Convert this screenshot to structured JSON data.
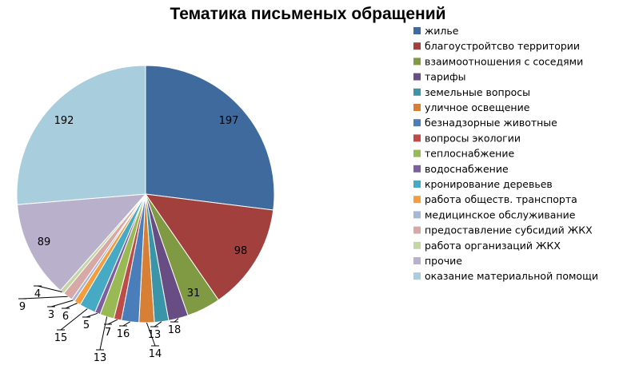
{
  "chart_data": {
    "type": "pie",
    "title": "Тематика письменых обращений",
    "legend_position": "right",
    "slices": [
      {
        "label": "жилье",
        "value": 197,
        "color": "#3F6A9E"
      },
      {
        "label": "благоустройтсво территории",
        "value": 98,
        "color": "#A1403C"
      },
      {
        "label": "взаимоотношения  с соседями",
        "value": 31,
        "color": "#7F9A43"
      },
      {
        "label": "тарифы",
        "value": 18,
        "color": "#684D85"
      },
      {
        "label": "земельные вопросы",
        "value": 13,
        "color": "#3A95A9"
      },
      {
        "label": "уличное освещение",
        "value": 14,
        "color": "#D77F34"
      },
      {
        "label": "безнадзорные животные",
        "value": 16,
        "color": "#4A7EBB"
      },
      {
        "label": "вопросы экологии",
        "value": 7,
        "color": "#BE4B48"
      },
      {
        "label": "теплоснабжение",
        "value": 13,
        "color": "#98B954"
      },
      {
        "label": "водоснабжение",
        "value": 5,
        "color": "#7D5FA0"
      },
      {
        "label": "кронирование деревьев",
        "value": 15,
        "color": "#46AAC5"
      },
      {
        "label": "работа обществ. транспорта",
        "value": 6,
        "color": "#F59D3D"
      },
      {
        "label": "медицинское обслуживание",
        "value": 3,
        "color": "#A5B8D6"
      },
      {
        "label": "предоставление субсидий ЖКХ",
        "value": 9,
        "color": "#D8A8A6"
      },
      {
        "label": "работа организаций  ЖКХ",
        "value": 4,
        "color": "#C4D6A4"
      },
      {
        "label": "прочие",
        "value": 89,
        "color": "#B9B0CB"
      },
      {
        "label": "оказание материальной помощи",
        "value": 192,
        "color": "#A8CDDC"
      }
    ]
  }
}
